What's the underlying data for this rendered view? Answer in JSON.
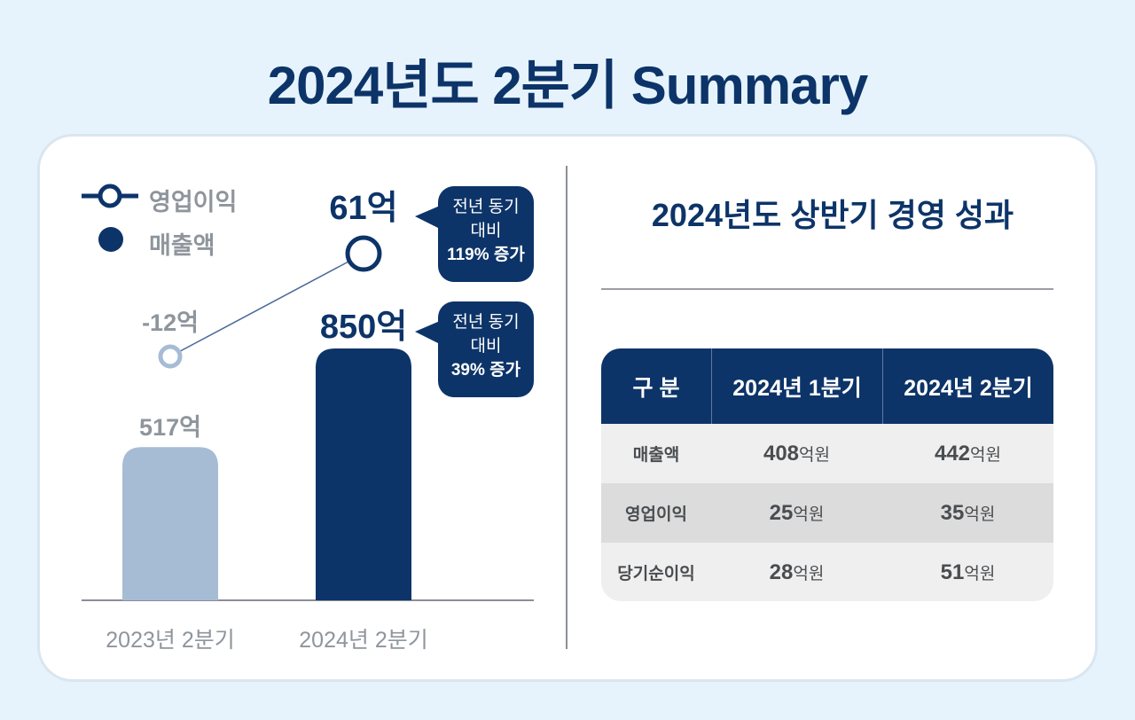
{
  "title": "2024년도 2분기 Summary",
  "chart_data": {
    "type": "bar+line",
    "categories": [
      "2023년 2분기",
      "2024년 2분기"
    ],
    "legend": [
      {
        "name": "영업이익",
        "marker": "line-circle"
      },
      {
        "name": "매출액",
        "marker": "dot"
      }
    ],
    "legend_position": "top-left",
    "series": [
      {
        "name": "매출액",
        "type": "bar",
        "values": [
          517,
          850
        ],
        "labels": [
          "517억",
          "850억"
        ],
        "colors": [
          "#a6bcd4",
          "#0d3468"
        ]
      },
      {
        "name": "영업이익",
        "type": "line",
        "values": [
          -12,
          61
        ],
        "labels": [
          "-12억",
          "61억"
        ],
        "colors": [
          "#a6bcd4",
          "#0d3468"
        ]
      }
    ],
    "callouts": [
      {
        "lines": [
          "전년 동기",
          "대비",
          "119% 증가"
        ]
      },
      {
        "lines": [
          "전년 동기",
          "대비",
          "39% 증가"
        ]
      }
    ],
    "grid": false
  },
  "right": {
    "title": "2024년도 상반기 경영 성과",
    "table": {
      "headers": [
        "구 분",
        "2024년 1분기",
        "2024년 2분기"
      ],
      "unit": "억원",
      "rows": [
        {
          "label": "매출액",
          "q1": "408",
          "q2": "442"
        },
        {
          "label": "영업이익",
          "q1": "25",
          "q2": "35"
        },
        {
          "label": "당기순이익",
          "q1": "28",
          "q2": "51"
        }
      ]
    }
  },
  "colors": {
    "primary": "#0d3468",
    "light": "#a6bcd4",
    "background": "#e6f3fc"
  }
}
